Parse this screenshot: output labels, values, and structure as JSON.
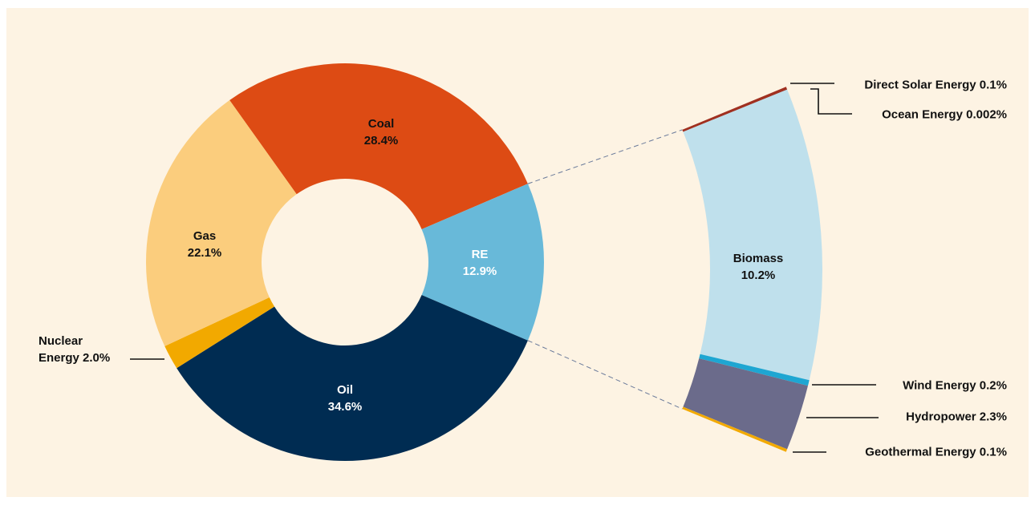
{
  "chart_data": [
    {
      "type": "donut",
      "categories": [
        "Coal",
        "RE",
        "Oil",
        "Nuclear Energy",
        "Gas"
      ],
      "values": [
        28.4,
        12.9,
        34.6,
        2.0,
        22.1
      ],
      "value_labels": [
        "28.4%",
        "12.9%",
        "34.6%",
        "2.0%",
        "22.1%"
      ],
      "colors": [
        "#dd4b14",
        "#68b9d9",
        "#002c52",
        "#f2a900",
        "#fbcd7d"
      ]
    },
    {
      "type": "arc",
      "categories": [
        "Direct Solar Energy",
        "Ocean Energy",
        "Biomass",
        "Wind Energy",
        "Hydropower",
        "Geothermal Energy"
      ],
      "values": [
        0.1,
        0.002,
        10.2,
        0.2,
        2.3,
        0.1
      ],
      "value_labels": [
        "0.1%",
        "0.002%",
        "10.2%",
        "0.2%",
        "2.3%",
        "0.1%"
      ],
      "colors": [
        "#a03020",
        "#3a3f6a",
        "#bfe0ec",
        "#1ea6d2",
        "#6b6b8b",
        "#f2a900"
      ]
    }
  ]
}
